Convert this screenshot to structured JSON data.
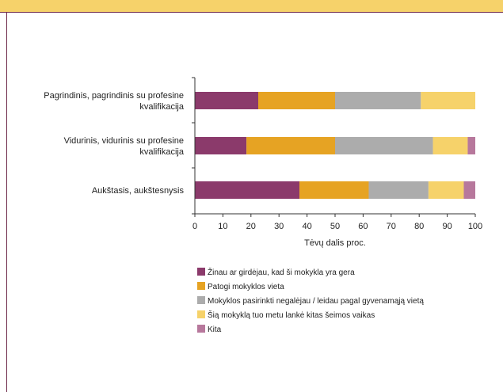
{
  "chart_data": {
    "type": "bar",
    "orientation": "horizontal",
    "stacked": true,
    "title": "",
    "xlabel": "Tėvų dalis proc.",
    "ylabel": "",
    "xlim": [
      0,
      100
    ],
    "x_ticks": [
      "0",
      "10",
      "20",
      "30",
      "40",
      "50",
      "60",
      "70",
      "80",
      "90",
      "100"
    ],
    "grid": false,
    "legend_position": "bottom",
    "categories": [
      {
        "lines": [
          "Pagrindinis, pagrindinis su profesine",
          "kvalifikacija"
        ]
      },
      {
        "lines": [
          "Vidurinis, vidurinis su profesine",
          "kvalifikacija"
        ]
      },
      {
        "lines": [
          "Aukštasis, aukštesnysis"
        ]
      }
    ],
    "series": [
      {
        "name": "Žinau ar girdėjau, kad ši mokykla yra gera",
        "color": "#8b3a6b",
        "values": [
          22.6,
          18.4,
          37.3
        ]
      },
      {
        "name": "Patogi mokyklos vieta",
        "color": "#e6a323",
        "values": [
          27.4,
          31.6,
          24.7
        ]
      },
      {
        "name": "Mokyklos pasirinkti negalėjau / leidau pagal gyvenamąją vietą",
        "color": "#acacac",
        "values": [
          30.6,
          34.9,
          21.3
        ]
      },
      {
        "name": "Šią mokyklą tuo metu lankė kitas šeimos vaikas",
        "color": "#f6d26a",
        "values": [
          19.4,
          12.4,
          12.6
        ]
      },
      {
        "name": "Kita",
        "color": "#b7789c",
        "values": [
          0,
          2.7,
          4.1
        ]
      }
    ]
  }
}
